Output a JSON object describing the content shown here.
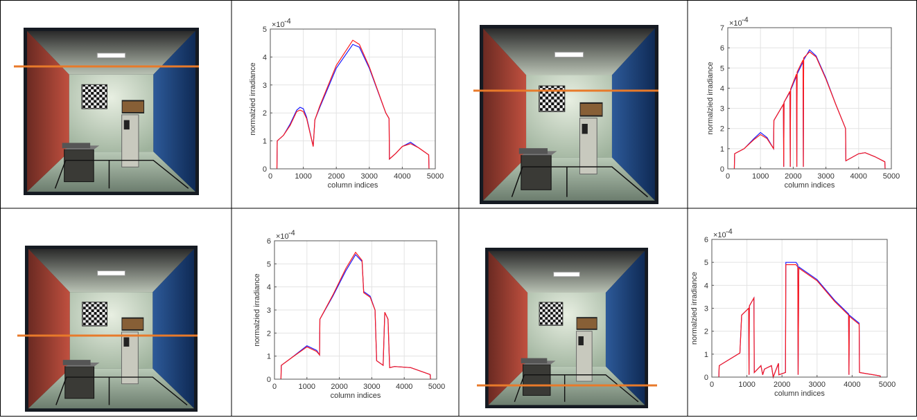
{
  "chart_data": [
    {
      "type": "line",
      "ylabel": "normalzied irradiance",
      "xlabel": "column indices",
      "exponent_base": "×10",
      "exponent_power": "-4",
      "grid": true,
      "xlim": [
        0,
        5000
      ],
      "xticks": [
        0,
        1000,
        2000,
        3000,
        4000,
        5000
      ],
      "ylim": [
        0,
        5
      ],
      "yticks": [
        0,
        1,
        2,
        3,
        4,
        5
      ],
      "x": [
        200,
        210,
        400,
        600,
        800,
        900,
        1000,
        1100,
        1300,
        1350,
        1500,
        2000,
        2500,
        2700,
        3000,
        3500,
        3600,
        3610,
        3800,
        4000,
        4250,
        4500,
        4800,
        4810
      ],
      "series": [
        {
          "color": "#1a1aff",
          "values": [
            0,
            1.0,
            1.2,
            1.6,
            2.1,
            2.2,
            2.15,
            1.85,
            0.8,
            1.75,
            2.2,
            3.6,
            4.45,
            4.35,
            3.6,
            2.0,
            1.8,
            0.35,
            0.55,
            0.8,
            0.95,
            0.75,
            0.5,
            0
          ]
        },
        {
          "color": "#ff1a1a",
          "values": [
            0,
            1.0,
            1.2,
            1.55,
            2.05,
            2.1,
            2.05,
            1.8,
            0.8,
            1.75,
            2.25,
            3.7,
            4.6,
            4.45,
            3.65,
            2.0,
            1.8,
            0.35,
            0.55,
            0.8,
            0.9,
            0.75,
            0.5,
            0
          ]
        }
      ]
    },
    {
      "type": "line",
      "ylabel": "normalzied irradiance",
      "xlabel": "column indices",
      "exponent_base": "×10",
      "exponent_power": "-4",
      "grid": true,
      "xlim": [
        0,
        5000
      ],
      "xticks": [
        0,
        1000,
        2000,
        3000,
        4000,
        5000
      ],
      "ylim": [
        0,
        7
      ],
      "yticks": [
        0,
        1,
        2,
        3,
        4,
        5,
        6,
        7
      ],
      "x": [
        200,
        210,
        500,
        800,
        1000,
        1200,
        1400,
        1410,
        1700,
        1710,
        1720,
        1900,
        1910,
        1920,
        2100,
        2110,
        2120,
        2300,
        2310,
        2320,
        2500,
        2700,
        3000,
        3300,
        3600,
        3610,
        4000,
        4200,
        4500,
        4800,
        4810
      ],
      "series": [
        {
          "color": "#1a1aff",
          "values": [
            0,
            0.75,
            1.0,
            1.5,
            1.8,
            1.55,
            1.0,
            2.4,
            3.2,
            0.1,
            3.3,
            3.8,
            0.1,
            3.9,
            4.6,
            0.1,
            4.7,
            5.3,
            0.1,
            5.4,
            5.9,
            5.6,
            4.5,
            3.2,
            2.0,
            0.4,
            0.75,
            0.8,
            0.6,
            0.35,
            0
          ]
        },
        {
          "color": "#ff1a1a",
          "values": [
            0,
            0.75,
            1.0,
            1.45,
            1.7,
            1.5,
            1.0,
            2.4,
            3.2,
            0.1,
            3.3,
            3.85,
            0.1,
            3.95,
            4.7,
            0.1,
            4.8,
            5.4,
            0.1,
            5.5,
            5.8,
            5.55,
            4.45,
            3.2,
            2.0,
            0.4,
            0.75,
            0.8,
            0.6,
            0.35,
            0
          ]
        }
      ]
    },
    {
      "type": "line",
      "ylabel": "normalzied irradiance",
      "xlabel": "column indices",
      "exponent_base": "×10",
      "exponent_power": "-4",
      "grid": true,
      "xlim": [
        0,
        5000
      ],
      "xticks": [
        0,
        1000,
        2000,
        3000,
        4000,
        5000
      ],
      "ylim": [
        0,
        6
      ],
      "yticks": [
        0,
        1,
        2,
        3,
        4,
        5,
        6
      ],
      "x": [
        200,
        210,
        500,
        1000,
        1300,
        1390,
        1400,
        1800,
        2200,
        2500,
        2700,
        2750,
        2950,
        3100,
        3150,
        3350,
        3400,
        3500,
        3550,
        3700,
        4200,
        4800,
        4810
      ],
      "series": [
        {
          "color": "#1a1aff",
          "values": [
            0,
            0.6,
            0.9,
            1.45,
            1.25,
            1.05,
            2.6,
            3.6,
            4.7,
            5.4,
            5.1,
            3.8,
            3.6,
            3.0,
            0.8,
            0.6,
            2.9,
            2.6,
            0.5,
            0.55,
            0.5,
            0.2,
            0
          ]
        },
        {
          "color": "#ff1a1a",
          "values": [
            0,
            0.6,
            0.9,
            1.4,
            1.2,
            1.05,
            2.6,
            3.65,
            4.8,
            5.5,
            5.15,
            3.75,
            3.55,
            3.0,
            0.8,
            0.6,
            2.9,
            2.6,
            0.5,
            0.55,
            0.5,
            0.2,
            0
          ]
        }
      ]
    },
    {
      "type": "line",
      "ylabel": "normalzied irradiance",
      "xlabel": "column indices",
      "exponent_base": "×10",
      "exponent_power": "-4",
      "grid": true,
      "xlim": [
        0,
        5000
      ],
      "xticks": [
        0,
        1000,
        2000,
        3000,
        4000,
        5000
      ],
      "ylim": [
        0,
        6
      ],
      "yticks": [
        0,
        1,
        2,
        3,
        4,
        5,
        6
      ],
      "x": [
        200,
        210,
        800,
        850,
        1050,
        1060,
        1070,
        1200,
        1210,
        1400,
        1450,
        1500,
        1700,
        1750,
        1900,
        1910,
        2100,
        2110,
        2400,
        2450,
        2460,
        2480,
        3000,
        3500,
        3900,
        3910,
        3920,
        4200,
        4210,
        4800,
        4810
      ],
      "series": [
        {
          "color": "#1a1aff",
          "values": [
            0,
            0.5,
            1.05,
            2.7,
            3.0,
            0.1,
            3.1,
            3.45,
            0.2,
            0.5,
            0.1,
            0.35,
            0.5,
            0,
            0.6,
            0.1,
            0.2,
            5.0,
            5.0,
            4.9,
            0.1,
            4.8,
            4.25,
            3.35,
            2.75,
            0.1,
            2.7,
            2.35,
            0.2,
            0.05,
            0
          ]
        },
        {
          "color": "#ff1a1a",
          "values": [
            0,
            0.5,
            1.05,
            2.7,
            3.0,
            0.1,
            3.1,
            3.45,
            0.2,
            0.5,
            0.1,
            0.35,
            0.5,
            0,
            0.6,
            0.1,
            0.2,
            4.9,
            4.9,
            4.8,
            0.1,
            4.75,
            4.2,
            3.3,
            2.7,
            0.1,
            2.65,
            2.3,
            0.2,
            0.05,
            0
          ]
        }
      ]
    }
  ]
}
